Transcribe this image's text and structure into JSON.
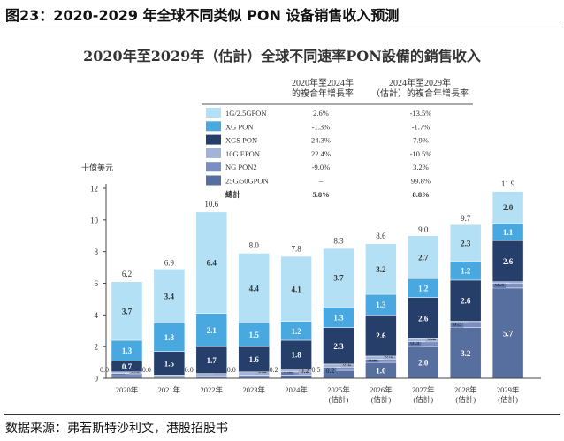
{
  "header": {
    "title": "图23：2020-2029 年全球不同类似 PON 设备销售收入预测"
  },
  "source": "数据来源：弗若斯特沙利文，港股招股书",
  "chart_data": {
    "type": "bar",
    "stacked": true,
    "title": "2020年至2029年（估計）全球不同速率PON設備的銷售收入",
    "ylabel": "十億美元",
    "ylim": [
      0,
      12
    ],
    "yticks": [
      0,
      2,
      4,
      6,
      8,
      10,
      12
    ],
    "categories": [
      "2020年",
      "2021年",
      "2022年",
      "2023年",
      "2024年",
      "2025年\n(估計)",
      "2026年\n(估計)",
      "2027年\n(估計)",
      "2028年\n(估計)",
      "2029年\n(估計)"
    ],
    "totals": [
      6.2,
      6.9,
      10.6,
      8.0,
      7.8,
      8.3,
      8.6,
      9.0,
      9.7,
      11.9
    ],
    "series": [
      {
        "name": "25G/50GPON",
        "color": "#566f9f",
        "values": [
          0.0,
          0.0,
          0.0,
          0.0,
          0.2,
          0.5,
          1.0,
          2.0,
          3.2,
          5.7
        ],
        "cagr_2020_2024": "–",
        "cagr_2024_2029": "99.8%"
      },
      {
        "name": "NG PON2",
        "color": "#7a8fbf",
        "values": [
          0.3,
          0.0,
          0.1,
          0.2,
          0.2,
          0.2,
          0.2,
          0.3,
          0.3,
          0.3
        ],
        "cagr_2020_2024": "-9.0%",
        "cagr_2024_2029": "3.2%"
      },
      {
        "name": "10G EPON",
        "color": "#a3b3d6",
        "values": [
          0.1,
          0.2,
          0.2,
          0.2,
          0.2,
          0.2,
          0.2,
          0.2,
          0.1,
          0.1
        ],
        "cagr_2020_2024": "22.4%",
        "cagr_2024_2029": "-10.5%"
      },
      {
        "name": "XGS PON",
        "color": "#253f6a",
        "values": [
          0.7,
          1.5,
          1.7,
          1.6,
          1.8,
          2.3,
          2.6,
          2.6,
          2.6,
          2.6
        ],
        "cagr_2020_2024": "24.3%",
        "cagr_2024_2029": "7.9%"
      },
      {
        "name": "XG PON",
        "color": "#4aa8e0",
        "values": [
          1.3,
          1.8,
          2.1,
          1.5,
          1.2,
          1.3,
          1.3,
          1.2,
          1.2,
          1.1
        ],
        "cagr_2020_2024": "-1.3%",
        "cagr_2024_2029": "-1.7%"
      },
      {
        "name": "1G/2.5GPON",
        "color": "#b3e0f5",
        "values": [
          3.7,
          3.4,
          6.4,
          4.4,
          4.1,
          3.7,
          3.2,
          2.7,
          2.3,
          2.0
        ],
        "cagr_2020_2024": "2.6%",
        "cagr_2024_2029": "-13.5%"
      }
    ],
    "legend": {
      "placement": "top-center",
      "col1_header": [
        "2020年至2024年",
        "的複合年增長率"
      ],
      "col2_header": [
        "2024年至2029年",
        "（估計）的複合年增長率"
      ],
      "total_label": "總計",
      "total_cagr_2020_2024": "5.8%",
      "total_cagr_2024_2029": "8.8%"
    }
  }
}
